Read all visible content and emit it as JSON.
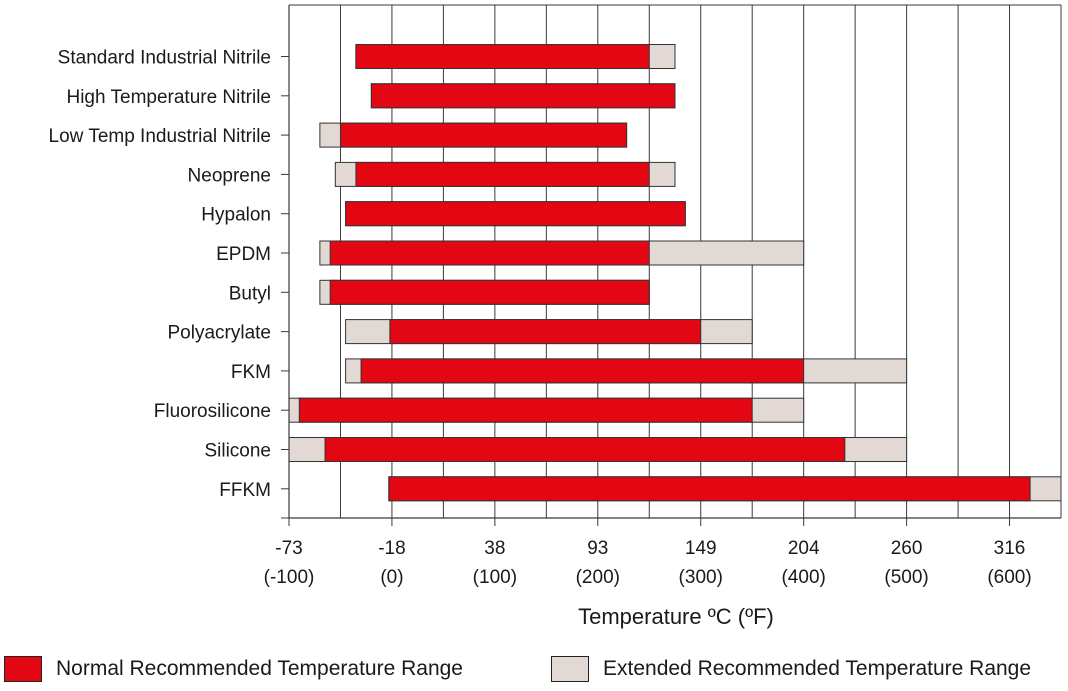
{
  "chart_data": {
    "type": "bar",
    "orientation": "horizontal",
    "xlabel": "Temperature ºC (ºF)",
    "x_ticks_c": [
      "-73",
      "-18",
      "38",
      "93",
      "149",
      "204",
      "260",
      "316"
    ],
    "x_ticks_f": [
      "(-100)",
      "(0)",
      "(100)",
      "(200)",
      "(300)",
      "(400)",
      "(500)",
      "(600)"
    ],
    "x_tick_values_f": [
      -100,
      0,
      100,
      200,
      300,
      400,
      500,
      600
    ],
    "xlim_f": [
      -100,
      650
    ],
    "grid_step_f": 50,
    "categories": [
      "Standard Industrial Nitrile",
      "High Temperature Nitrile",
      "Low Temp Industrial Nitrile",
      "Neoprene",
      "Hypalon",
      "EPDM",
      "Butyl",
      "Polyacrylate",
      "FKM",
      "Fluorosilicone",
      "Silicone",
      "FFKM"
    ],
    "series": [
      {
        "name": "Normal Recommended Temperature Range",
        "color": "#e30613",
        "ranges_f": [
          [
            -35,
            250
          ],
          [
            -20,
            275
          ],
          [
            -50,
            228
          ],
          [
            -35,
            250
          ],
          [
            -45,
            285
          ],
          [
            -60,
            250
          ],
          [
            -60,
            250
          ],
          [
            -2,
            300
          ],
          [
            -30,
            400
          ],
          [
            -90,
            350
          ],
          [
            -65,
            440
          ],
          [
            -3,
            620
          ]
        ]
      },
      {
        "name": "Extended Recommended Temperature Range",
        "color": "#e2d9d5",
        "ranges_f": [
          [
            -35,
            275
          ],
          [
            -20,
            275
          ],
          [
            -70,
            228
          ],
          [
            -55,
            275
          ],
          [
            -45,
            285
          ],
          [
            -70,
            400
          ],
          [
            -70,
            250
          ],
          [
            -45,
            350
          ],
          [
            -45,
            500
          ],
          [
            -100,
            400
          ],
          [
            -100,
            500
          ],
          [
            -3,
            650
          ]
        ]
      }
    ],
    "grid": true,
    "legend_position": "bottom"
  },
  "legend": {
    "normal_label": "Normal Recommended Temperature Range",
    "extended_label": "Extended Recommended Temperature Range",
    "normal_color": "#e30613",
    "extended_color": "#e2d9d5"
  }
}
